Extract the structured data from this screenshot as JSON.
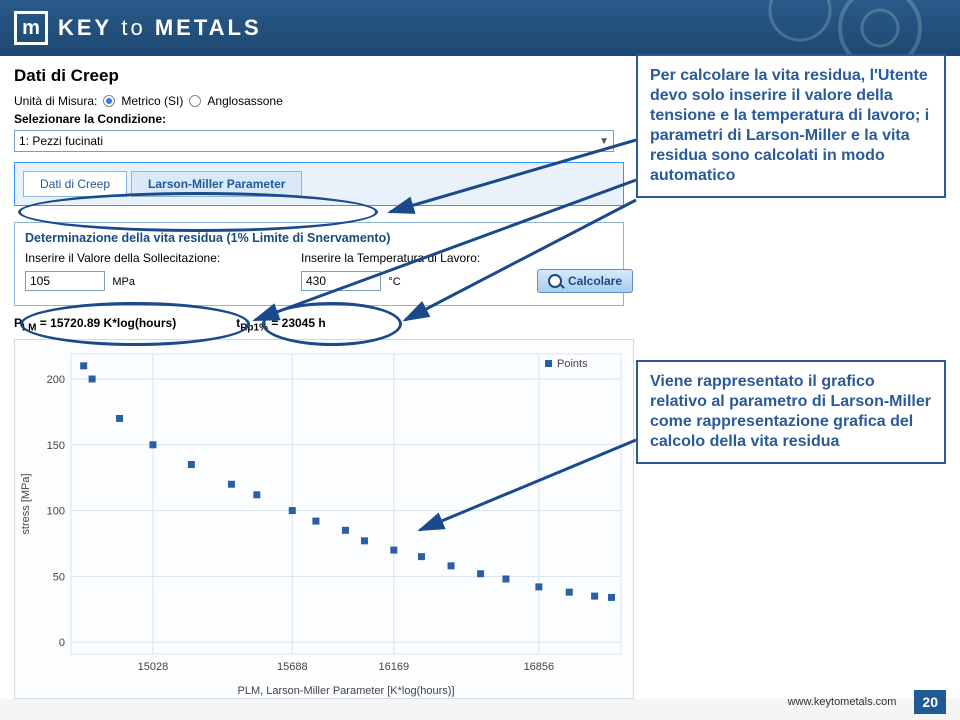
{
  "brand": {
    "logo_text_bold": "KEY",
    "logo_text_mid": " to ",
    "logo_text_end": "METALS"
  },
  "page": {
    "title": "Dati di Creep",
    "units_label": "Unità di Misura:",
    "unit_metric": "Metrico (SI)",
    "unit_anglo": "Anglosassone",
    "condition_label": "Selezionare la Condizione:",
    "condition_value": "1: Pezzi fucinati"
  },
  "tabs": {
    "t1": "Dati di Creep",
    "t2": "Larson-Miller Parameter"
  },
  "form": {
    "box_title": "Determinazione della vita residua (1% Limite di Snervamento)",
    "stress_label": "Inserire il Valore della Sollecitazione:",
    "stress_value": "105",
    "stress_unit": "MPa",
    "temp_label": "Inserire la Temperatura di Lavoro:",
    "temp_value": "430",
    "temp_unit": "°C",
    "calc_btn": "Calcolare"
  },
  "results": {
    "plm_label_pre": "P",
    "plm_label_sub": "LM",
    "plm_rest": " = 15720.89 K*log(hours)",
    "t_label_pre": "t",
    "t_label_sub": "Rp1%",
    "t_rest": " = 23045 h"
  },
  "callouts": {
    "c1": "Per calcolare la vita residua, l'Utente devo solo inserire il valore della tensione e la temperatura di lavoro; i parametri di Larson-Miller e la vita residua sono calcolati in modo automatico",
    "c2": "Viene rappresentato il grafico relativo al parametro di Larson-Miller come rappresentazione grafica del calcolo della vita residua"
  },
  "chart": {
    "type": "scatter",
    "legend_label": "Points",
    "marker_color": "#2a5fa3",
    "marker_size": 7,
    "background_color": "#fcfdff",
    "grid_color": "#d9e3ec",
    "axis_color": "#666666",
    "label_color": "#444444",
    "label_fontsize": 11,
    "ylabel": "stress [MPa]",
    "ylim": [
      -9,
      219
    ],
    "yticks": [
      0,
      50,
      100,
      150,
      200
    ],
    "xlabel": "PLM, Larson-Miller Parameter [K*log(hours)]",
    "xlim": [
      14640,
      17245
    ],
    "xticks": [
      15028,
      15688,
      16169,
      16856
    ],
    "points": [
      {
        "x": 14700,
        "y": 210
      },
      {
        "x": 14740,
        "y": 200
      },
      {
        "x": 14870,
        "y": 170
      },
      {
        "x": 15028,
        "y": 150
      },
      {
        "x": 15210,
        "y": 135
      },
      {
        "x": 15400,
        "y": 120
      },
      {
        "x": 15520,
        "y": 112
      },
      {
        "x": 15688,
        "y": 100
      },
      {
        "x": 15800,
        "y": 92
      },
      {
        "x": 15940,
        "y": 85
      },
      {
        "x": 16030,
        "y": 77
      },
      {
        "x": 16169,
        "y": 70
      },
      {
        "x": 16300,
        "y": 65
      },
      {
        "x": 16440,
        "y": 58
      },
      {
        "x": 16580,
        "y": 52
      },
      {
        "x": 16700,
        "y": 48
      },
      {
        "x": 16856,
        "y": 42
      },
      {
        "x": 17000,
        "y": 38
      },
      {
        "x": 17120,
        "y": 35
      },
      {
        "x": 17200,
        "y": 34
      }
    ]
  },
  "footer": {
    "url": "www.keytometals.com",
    "page": "20"
  }
}
